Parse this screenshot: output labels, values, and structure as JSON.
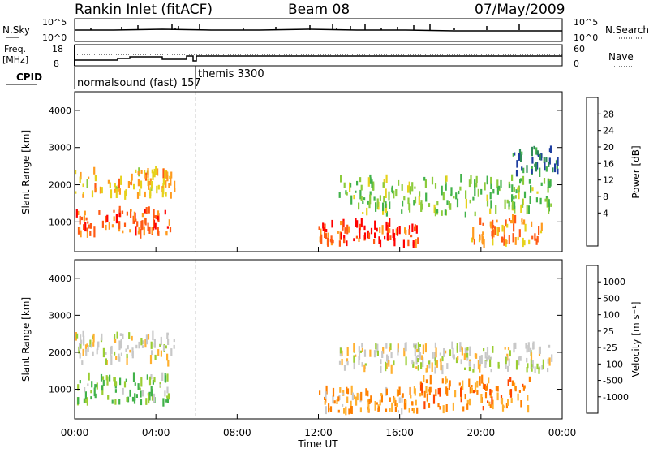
{
  "header": {
    "station": "Rankin Inlet (fitACF)",
    "beam": "Beam 08",
    "date": "07/May/2009"
  },
  "top_panels": {
    "nsky_label": "N.Sky",
    "nsky_ticks": [
      "10^5",
      "10^0"
    ],
    "nsearch_label": "N.Search",
    "nsearch_ticks": [
      "10^5",
      "10^0"
    ],
    "freq_label_1": "Freq.",
    "freq_label_2": "[MHz]",
    "freq_ticks": [
      "18",
      "8"
    ],
    "nave_label": "Nave",
    "nave_ticks": [
      "60",
      "0"
    ],
    "cpid_label": "CPID",
    "cpid_segments": [
      "normalsound (fast) 157",
      "themis 3300"
    ]
  },
  "power_panel": {
    "ylabel": "Slant Range [km]",
    "yticks": [
      "4000",
      "3000",
      "2000",
      "1000"
    ],
    "colorbar_label": "Power [dB]",
    "colorbar_ticks": [
      "28",
      "24",
      "20",
      "16",
      "12",
      "8",
      "4"
    ],
    "colors": [
      "#0000ff",
      "#1f3fa0",
      "#2e8b57",
      "#41b24a",
      "#8ccb3c",
      "#e6d21c",
      "#ff9a1e",
      "#ff5a14",
      "#ff0000"
    ]
  },
  "velocity_panel": {
    "ylabel": "Slant Range [km]",
    "yticks": [
      "4000",
      "3000",
      "2000",
      "1000"
    ],
    "colorbar_label": "Velocity [m s⁻¹]",
    "colorbar_ticks": [
      "1000",
      "500",
      "100",
      "25",
      "-25",
      "-100",
      "-500",
      "-1000"
    ],
    "colors": [
      "#1a3fa0",
      "#2e8b57",
      "#41b24a",
      "#9acd32",
      "#c8c8c8",
      "#ffb030",
      "#ff7f00",
      "#ff4500",
      "#ff0000"
    ]
  },
  "x_axis": {
    "ticks": [
      "00:00",
      "04:00",
      "08:00",
      "12:00",
      "16:00",
      "20:00",
      "00:00"
    ],
    "label": "Time UT"
  },
  "chart_data": {
    "type": "heatmap",
    "title": "Rankin Inlet (fitACF)",
    "subtitle": "Beam 08 07/May/2009",
    "xlabel": "Time UT",
    "ylabel": "Slant Range [km]",
    "xlim": [
      "00:00",
      "24:00"
    ],
    "ylim": [
      200,
      4500
    ],
    "panels": [
      {
        "name": "Power [dB]",
        "clim": [
          0,
          30
        ],
        "regions": [
          {
            "t0": 0.0,
            "t1": 4.9,
            "r0": 1700,
            "r1": 2400,
            "value": 20
          },
          {
            "t0": 0.0,
            "t1": 4.7,
            "r0": 650,
            "r1": 1350,
            "value": 24
          },
          {
            "t0": 12.0,
            "t1": 17.0,
            "r0": 400,
            "r1": 1000,
            "value": 26
          },
          {
            "t0": 13.0,
            "t1": 23.5,
            "r0": 1200,
            "r1": 2200,
            "value": 14
          },
          {
            "t0": 19.5,
            "t1": 23.0,
            "r0": 400,
            "r1": 1100,
            "value": 22
          },
          {
            "t0": 21.5,
            "t1": 23.8,
            "r0": 2300,
            "r1": 3000,
            "value": 8
          }
        ]
      },
      {
        "name": "Velocity [m s^-1]",
        "clim": [
          -1000,
          1000
        ],
        "regions": [
          {
            "t0": 0.0,
            "t1": 4.9,
            "r0": 1700,
            "r1": 2500,
            "value": 0
          },
          {
            "t0": 0.0,
            "t1": 4.7,
            "r0": 650,
            "r1": 1350,
            "value": 300
          },
          {
            "t0": 12.0,
            "t1": 17.0,
            "r0": 400,
            "r1": 1000,
            "value": -300
          },
          {
            "t0": 13.0,
            "t1": 23.5,
            "r0": 1500,
            "r1": 2200,
            "value": 0
          },
          {
            "t0": 17.0,
            "t1": 22.5,
            "r0": 450,
            "r1": 1300,
            "value": -400
          }
        ]
      }
    ]
  }
}
